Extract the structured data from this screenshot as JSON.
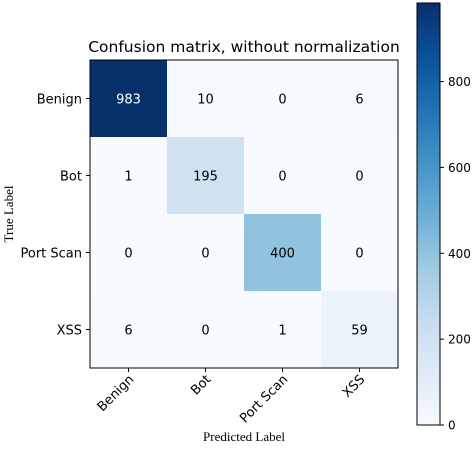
{
  "chart_data": {
    "type": "heatmap",
    "title": "Confusion matrix, without normalization",
    "xlabel": "Predicted Label",
    "ylabel": "True Label",
    "x_categories": [
      "Benign",
      "Bot",
      "Port Scan",
      "XSS"
    ],
    "y_categories": [
      "Benign",
      "Bot",
      "Port Scan",
      "XSS"
    ],
    "matrix": [
      [
        983,
        10,
        0,
        6
      ],
      [
        1,
        195,
        0,
        0
      ],
      [
        0,
        0,
        400,
        0
      ],
      [
        6,
        0,
        1,
        59
      ]
    ],
    "colormap": "Blues",
    "color_range": [
      0,
      983
    ],
    "colorbar_ticks": [
      0,
      200,
      400,
      600,
      800
    ],
    "colors": {
      "low": "#f7fbff",
      "high": "#08306b",
      "text_on_dark": "#ffffff",
      "text_on_light": "#000000"
    }
  }
}
